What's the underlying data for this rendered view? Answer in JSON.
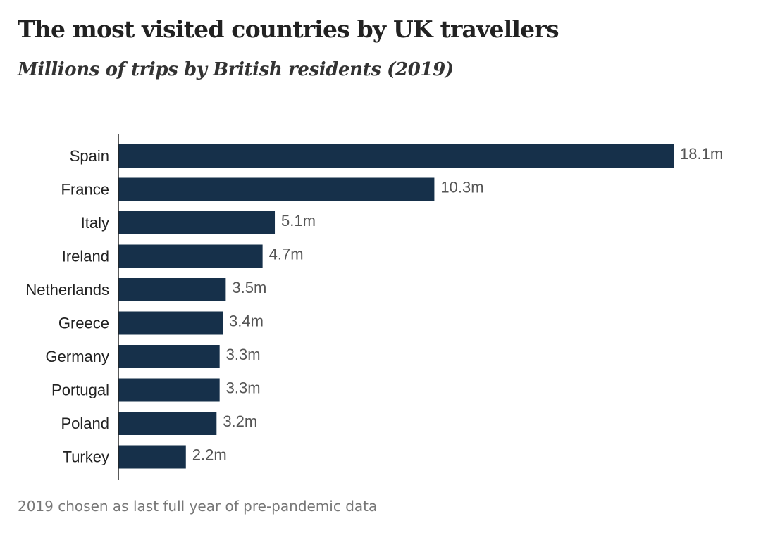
{
  "header": {
    "title": "The most visited countries by UK travellers",
    "subtitle": "Millions of trips by British residents (2019)"
  },
  "footer": {
    "note": "2019 chosen as last full year of pre-pandemic data"
  },
  "colors": {
    "bar": "#16304a",
    "axis": "#222222"
  },
  "chart_data": {
    "type": "bar",
    "orientation": "horizontal",
    "title": "The most visited countries by UK travellers",
    "subtitle": "Millions of trips by British residents (2019)",
    "xlabel": "",
    "ylabel": "",
    "categories": [
      "Spain",
      "France",
      "Italy",
      "Ireland",
      "Netherlands",
      "Greece",
      "Germany",
      "Portugal",
      "Poland",
      "Turkey"
    ],
    "values": [
      18.1,
      10.3,
      5.1,
      4.7,
      3.5,
      3.4,
      3.3,
      3.3,
      3.2,
      2.2
    ],
    "value_labels": [
      "18.1m",
      "10.3m",
      "5.1m",
      "4.7m",
      "3.5m",
      "3.4m",
      "3.3m",
      "3.3m",
      "3.2m",
      "2.2m"
    ],
    "unit": "m",
    "xlim": [
      0,
      18.1
    ],
    "grid": false,
    "legend": "none"
  }
}
